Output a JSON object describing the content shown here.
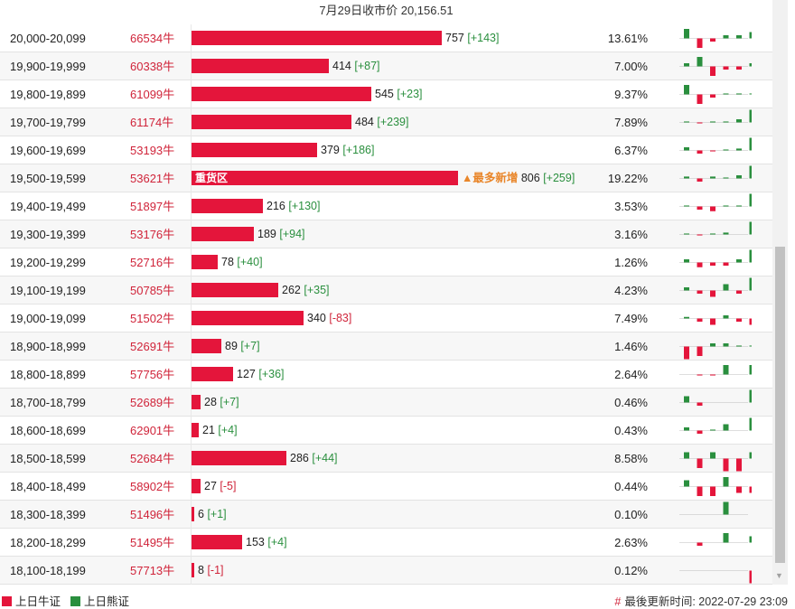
{
  "header": {
    "title": "7月29日收市价 20,156.51"
  },
  "colors": {
    "bull": "#e4153b",
    "bear": "#2a8f3e",
    "zone_tag": "#e9862a"
  },
  "rows": [
    {
      "range": "20,000-20,099",
      "bull": "66534牛",
      "value": "757",
      "change": "[+143]",
      "pct": "13.61%",
      "bar_value": 757,
      "spark": [
        3,
        -3,
        -1,
        1,
        1,
        2
      ]
    },
    {
      "range": "19,900-19,999",
      "bull": "60338牛",
      "value": "414",
      "change": "[+87]",
      "pct": "7.00%",
      "bar_value": 414,
      "spark": [
        1,
        3,
        -3,
        -1,
        -1,
        1
      ]
    },
    {
      "range": "19,800-19,899",
      "bull": "61099牛",
      "value": "545",
      "change": "[+23]",
      "pct": "9.37%",
      "bar_value": 545,
      "spark": [
        3,
        -3,
        -1,
        0.3,
        0.3,
        0.3
      ]
    },
    {
      "range": "19,700-19,799",
      "bull": "61174牛",
      "value": "484",
      "change": "[+239]",
      "pct": "7.89%",
      "bar_value": 484,
      "spark": [
        0.3,
        -0.3,
        0.3,
        0.3,
        1,
        4
      ]
    },
    {
      "range": "19,600-19,699",
      "bull": "53193牛",
      "value": "379",
      "change": "[+186]",
      "pct": "6.37%",
      "bar_value": 379,
      "spark": [
        1,
        -1,
        -0.3,
        0.3,
        0.6,
        4
      ]
    },
    {
      "range": "19,500-19,599",
      "bull": "53621牛",
      "zone": "重货区",
      "tag": "▲最多新增",
      "value": "806",
      "change": "[+259]",
      "pct": "19.22%",
      "bar_value": 806,
      "spark": [
        0.6,
        -1,
        0.6,
        0.3,
        1,
        4
      ]
    },
    {
      "range": "19,400-19,499",
      "bull": "51897牛",
      "value": "216",
      "change": "[+130]",
      "pct": "3.53%",
      "bar_value": 216,
      "spark": [
        0.3,
        -1,
        -1.5,
        0.3,
        0.3,
        4
      ]
    },
    {
      "range": "19,300-19,399",
      "bull": "53176牛",
      "value": "189",
      "change": "[+94]",
      "pct": "3.16%",
      "bar_value": 189,
      "spark": [
        0.3,
        -0.3,
        0.3,
        0.6,
        0,
        4
      ]
    },
    {
      "range": "19,200-19,299",
      "bull": "52716牛",
      "value": "78",
      "change": "[+40]",
      "pct": "1.26%",
      "bar_value": 78,
      "spark": [
        1,
        -1.5,
        -1,
        -1,
        1,
        4
      ]
    },
    {
      "range": "19,100-19,199",
      "bull": "50785牛",
      "value": "262",
      "change": "[+35]",
      "pct": "4.23%",
      "bar_value": 262,
      "spark": [
        1,
        -1,
        -2,
        2,
        -1,
        4
      ]
    },
    {
      "range": "19,000-19,099",
      "bull": "51502牛",
      "value": "340",
      "change": "[-83]",
      "pct": "7.49%",
      "bar_value": 340,
      "spark": [
        0.5,
        -1,
        -2,
        1,
        -1,
        -2
      ]
    },
    {
      "range": "18,900-18,999",
      "bull": "52691牛",
      "value": "89",
      "change": "[+7]",
      "pct": "1.46%",
      "bar_value": 89,
      "spark": [
        -4,
        -3,
        1,
        1,
        0.3,
        0.3
      ]
    },
    {
      "range": "18,800-18,899",
      "bull": "57756牛",
      "value": "127",
      "change": "[+36]",
      "pct": "2.64%",
      "bar_value": 127,
      "spark": [
        0,
        -0.3,
        -0.3,
        3,
        0,
        3
      ]
    },
    {
      "range": "18,700-18,799",
      "bull": "52689牛",
      "value": "28",
      "change": "[+7]",
      "pct": "0.46%",
      "bar_value": 28,
      "spark": [
        2,
        -1,
        0,
        0,
        0,
        4
      ]
    },
    {
      "range": "18,600-18,699",
      "bull": "62901牛",
      "value": "21",
      "change": "[+4]",
      "pct": "0.43%",
      "bar_value": 21,
      "spark": [
        1,
        -1,
        0.3,
        2,
        0,
        4
      ]
    },
    {
      "range": "18,500-18,599",
      "bull": "52684牛",
      "value": "286",
      "change": "[+44]",
      "pct": "8.58%",
      "bar_value": 286,
      "spark": [
        2,
        -3,
        2,
        -4,
        -4,
        2
      ]
    },
    {
      "range": "18,400-18,499",
      "bull": "58902牛",
      "value": "27",
      "change": "[-5]",
      "pct": "0.44%",
      "bar_value": 27,
      "spark": [
        2,
        -3,
        -3,
        3,
        -2,
        -2
      ]
    },
    {
      "range": "18,300-18,399",
      "bull": "51496牛",
      "value": "6",
      "change": "[+1]",
      "pct": "0.10%",
      "bar_value": 6,
      "spark": [
        0,
        0,
        0,
        4,
        0,
        0
      ]
    },
    {
      "range": "18,200-18,299",
      "bull": "51495牛",
      "value": "153",
      "change": "[+4]",
      "pct": "2.63%",
      "bar_value": 153,
      "spark": [
        0,
        -1,
        0,
        3,
        0,
        2
      ]
    },
    {
      "range": "18,100-18,199",
      "bull": "57713牛",
      "value": "8",
      "change": "[-1]",
      "pct": "0.12%",
      "bar_value": 8,
      "spark": [
        0,
        0,
        0,
        0,
        0,
        -4
      ]
    }
  ],
  "bar_max": 806,
  "legend": {
    "bull_label": "上日牛证",
    "bear_label": "上日熊证",
    "updated": "最後更新时间: 2022-07-29 23:09",
    "hash": "#"
  }
}
